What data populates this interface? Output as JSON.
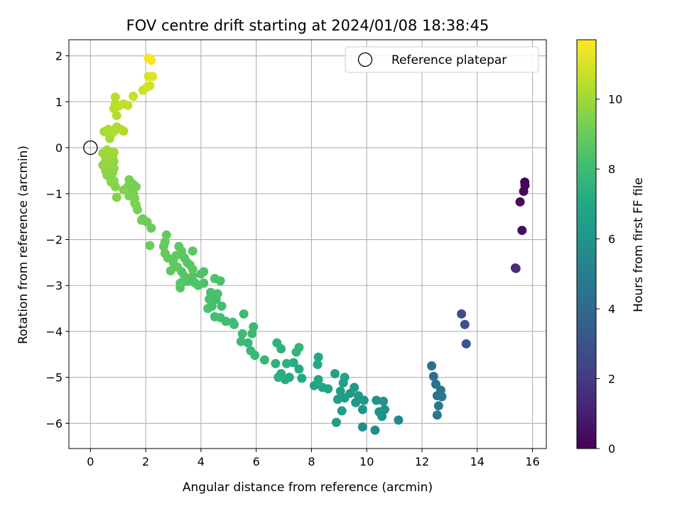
{
  "chart_data": {
    "type": "scatter",
    "title": "FOV centre drift starting at 2024/01/08 18:38:45",
    "xlabel": "Angular distance from reference (arcmin)",
    "ylabel": "Rotation from reference (arcmin)",
    "xlim": [
      -0.78,
      16.5
    ],
    "ylim": [
      -6.55,
      2.35
    ],
    "xticks": [
      0,
      2,
      4,
      6,
      8,
      10,
      12,
      14,
      16
    ],
    "yticks": [
      -6,
      -5,
      -4,
      -3,
      -2,
      -1,
      0,
      1,
      2
    ],
    "grid": true,
    "legend": {
      "position": "top-right",
      "entries": [
        "Reference platepar"
      ]
    },
    "reference_point": {
      "x": 0,
      "y": 0
    },
    "colorbar": {
      "label": "Hours from first FF file",
      "range": [
        0,
        11.7
      ],
      "ticks": [
        0,
        2,
        4,
        6,
        8,
        10
      ],
      "colormap": "viridis"
    },
    "points": [
      {
        "x": 15.72,
        "y": -0.75,
        "t": 0.1
      },
      {
        "x": 15.73,
        "y": -0.82,
        "t": 0.15
      },
      {
        "x": 15.68,
        "y": -0.95,
        "t": 0.2
      },
      {
        "x": 15.55,
        "y": -1.18,
        "t": 0.3
      },
      {
        "x": 15.62,
        "y": -1.8,
        "t": 0.4
      },
      {
        "x": 15.4,
        "y": -2.63,
        "t": 1.5
      },
      {
        "x": 15.38,
        "y": -2.62,
        "t": 1.5
      },
      {
        "x": 13.43,
        "y": -3.62,
        "t": 2.8
      },
      {
        "x": 13.55,
        "y": -3.85,
        "t": 3.0
      },
      {
        "x": 13.6,
        "y": -4.27,
        "t": 3.2
      },
      {
        "x": 12.35,
        "y": -4.75,
        "t": 4.2
      },
      {
        "x": 12.42,
        "y": -4.98,
        "t": 4.3
      },
      {
        "x": 12.5,
        "y": -5.15,
        "t": 4.4
      },
      {
        "x": 12.55,
        "y": -5.4,
        "t": 4.5
      },
      {
        "x": 12.6,
        "y": -5.62,
        "t": 4.6
      },
      {
        "x": 12.55,
        "y": -5.82,
        "t": 4.7
      },
      {
        "x": 12.68,
        "y": -5.28,
        "t": 4.6
      },
      {
        "x": 12.72,
        "y": -5.42,
        "t": 4.7
      },
      {
        "x": 11.15,
        "y": -5.93,
        "t": 5.4
      },
      {
        "x": 10.3,
        "y": -6.15,
        "t": 5.6
      },
      {
        "x": 9.85,
        "y": -6.08,
        "t": 5.7
      },
      {
        "x": 10.55,
        "y": -5.85,
        "t": 5.8
      },
      {
        "x": 10.65,
        "y": -5.7,
        "t": 5.8
      },
      {
        "x": 10.6,
        "y": -5.52,
        "t": 5.9
      },
      {
        "x": 10.35,
        "y": -5.5,
        "t": 6.0
      },
      {
        "x": 10.45,
        "y": -5.75,
        "t": 6.0
      },
      {
        "x": 9.9,
        "y": -5.5,
        "t": 6.1
      },
      {
        "x": 9.85,
        "y": -5.7,
        "t": 6.1
      },
      {
        "x": 9.6,
        "y": -5.55,
        "t": 6.2
      },
      {
        "x": 9.7,
        "y": -5.4,
        "t": 6.2
      },
      {
        "x": 9.4,
        "y": -5.35,
        "t": 6.3
      },
      {
        "x": 9.55,
        "y": -5.22,
        "t": 6.3
      },
      {
        "x": 9.2,
        "y": -5.45,
        "t": 6.4
      },
      {
        "x": 9.1,
        "y": -5.73,
        "t": 6.4
      },
      {
        "x": 8.9,
        "y": -5.98,
        "t": 6.5
      },
      {
        "x": 8.95,
        "y": -5.48,
        "t": 6.5
      },
      {
        "x": 9.05,
        "y": -5.3,
        "t": 6.6
      },
      {
        "x": 9.15,
        "y": -5.12,
        "t": 6.6
      },
      {
        "x": 9.2,
        "y": -5.0,
        "t": 6.7
      },
      {
        "x": 8.85,
        "y": -4.92,
        "t": 6.7
      },
      {
        "x": 8.6,
        "y": -5.25,
        "t": 6.8
      },
      {
        "x": 8.4,
        "y": -5.22,
        "t": 6.8
      },
      {
        "x": 8.25,
        "y": -5.05,
        "t": 6.9
      },
      {
        "x": 8.1,
        "y": -5.18,
        "t": 6.9
      },
      {
        "x": 8.25,
        "y": -4.56,
        "t": 7.0
      },
      {
        "x": 8.22,
        "y": -4.72,
        "t": 7.0
      },
      {
        "x": 7.65,
        "y": -5.02,
        "t": 7.1
      },
      {
        "x": 7.55,
        "y": -4.82,
        "t": 7.1
      },
      {
        "x": 7.35,
        "y": -4.68,
        "t": 7.2
      },
      {
        "x": 7.2,
        "y": -5.0,
        "t": 7.2
      },
      {
        "x": 7.05,
        "y": -5.05,
        "t": 7.3
      },
      {
        "x": 6.9,
        "y": -4.92,
        "t": 7.3
      },
      {
        "x": 6.8,
        "y": -5.0,
        "t": 7.4
      },
      {
        "x": 6.7,
        "y": -4.7,
        "t": 7.4
      },
      {
        "x": 6.9,
        "y": -4.38,
        "t": 7.5
      },
      {
        "x": 6.75,
        "y": -4.25,
        "t": 7.5
      },
      {
        "x": 7.1,
        "y": -4.7,
        "t": 7.5
      },
      {
        "x": 7.45,
        "y": -4.45,
        "t": 7.6
      },
      {
        "x": 7.55,
        "y": -4.35,
        "t": 7.6
      },
      {
        "x": 6.3,
        "y": -4.62,
        "t": 7.7
      },
      {
        "x": 5.95,
        "y": -4.52,
        "t": 7.8
      },
      {
        "x": 5.8,
        "y": -4.42,
        "t": 7.8
      },
      {
        "x": 5.7,
        "y": -4.25,
        "t": 7.8
      },
      {
        "x": 5.85,
        "y": -4.05,
        "t": 7.9
      },
      {
        "x": 5.9,
        "y": -3.9,
        "t": 7.9
      },
      {
        "x": 5.45,
        "y": -4.22,
        "t": 7.9
      },
      {
        "x": 5.5,
        "y": -4.05,
        "t": 8.0
      },
      {
        "x": 5.55,
        "y": -3.62,
        "t": 8.0
      },
      {
        "x": 5.2,
        "y": -3.85,
        "t": 8.0
      },
      {
        "x": 5.15,
        "y": -3.8,
        "t": 8.1
      },
      {
        "x": 4.9,
        "y": -3.78,
        "t": 8.1
      },
      {
        "x": 4.7,
        "y": -3.7,
        "t": 8.1
      },
      {
        "x": 4.5,
        "y": -3.68,
        "t": 8.2
      },
      {
        "x": 4.75,
        "y": -3.45,
        "t": 8.2
      },
      {
        "x": 4.55,
        "y": -3.3,
        "t": 8.2
      },
      {
        "x": 4.4,
        "y": -3.45,
        "t": 8.2
      },
      {
        "x": 4.3,
        "y": -3.3,
        "t": 8.3
      },
      {
        "x": 4.35,
        "y": -3.15,
        "t": 8.3
      },
      {
        "x": 4.25,
        "y": -3.5,
        "t": 8.3
      },
      {
        "x": 4.6,
        "y": -3.18,
        "t": 8.3
      },
      {
        "x": 4.7,
        "y": -2.9,
        "t": 8.3
      },
      {
        "x": 4.5,
        "y": -2.85,
        "t": 8.4
      },
      {
        "x": 4.1,
        "y": -2.7,
        "t": 8.4
      },
      {
        "x": 4.0,
        "y": -2.75,
        "t": 8.4
      },
      {
        "x": 3.9,
        "y": -3.0,
        "t": 8.5
      },
      {
        "x": 3.8,
        "y": -2.95,
        "t": 8.5
      },
      {
        "x": 3.7,
        "y": -2.8,
        "t": 8.5
      },
      {
        "x": 3.55,
        "y": -2.9,
        "t": 8.5
      },
      {
        "x": 3.45,
        "y": -2.9,
        "t": 8.5
      },
      {
        "x": 3.3,
        "y": -2.7,
        "t": 8.6
      },
      {
        "x": 3.25,
        "y": -2.95,
        "t": 8.6
      },
      {
        "x": 3.25,
        "y": -3.05,
        "t": 8.6
      },
      {
        "x": 3.4,
        "y": -2.8,
        "t": 8.6
      },
      {
        "x": 3.6,
        "y": -2.55,
        "t": 8.6
      },
      {
        "x": 3.7,
        "y": -2.65,
        "t": 8.7
      },
      {
        "x": 3.5,
        "y": -2.5,
        "t": 8.7
      },
      {
        "x": 3.4,
        "y": -2.4,
        "t": 8.7
      },
      {
        "x": 3.3,
        "y": -2.25,
        "t": 8.7
      },
      {
        "x": 3.2,
        "y": -2.15,
        "t": 8.8
      },
      {
        "x": 3.1,
        "y": -2.35,
        "t": 8.8
      },
      {
        "x": 3.0,
        "y": -2.5,
        "t": 8.8
      },
      {
        "x": 2.9,
        "y": -2.68,
        "t": 8.8
      },
      {
        "x": 2.8,
        "y": -2.4,
        "t": 8.8
      },
      {
        "x": 2.7,
        "y": -2.3,
        "t": 8.9
      },
      {
        "x": 2.65,
        "y": -2.15,
        "t": 8.9
      },
      {
        "x": 2.7,
        "y": -2.05,
        "t": 8.9
      },
      {
        "x": 2.75,
        "y": -1.9,
        "t": 8.9
      },
      {
        "x": 3.15,
        "y": -2.6,
        "t": 8.8
      },
      {
        "x": 3.7,
        "y": -2.25,
        "t": 8.7
      },
      {
        "x": 4.1,
        "y": -2.95,
        "t": 8.4
      },
      {
        "x": 2.15,
        "y": -2.13,
        "t": 9.0
      },
      {
        "x": 2.2,
        "y": -1.75,
        "t": 9.0
      },
      {
        "x": 2.05,
        "y": -1.62,
        "t": 9.1
      },
      {
        "x": 1.9,
        "y": -1.55,
        "t": 9.1
      },
      {
        "x": 1.85,
        "y": -1.58,
        "t": 9.1
      },
      {
        "x": 1.7,
        "y": -1.35,
        "t": 9.2
      },
      {
        "x": 1.6,
        "y": -1.2,
        "t": 9.2
      },
      {
        "x": 1.55,
        "y": -1.0,
        "t": 9.2
      },
      {
        "x": 1.5,
        "y": -0.9,
        "t": 9.3
      },
      {
        "x": 1.45,
        "y": -0.75,
        "t": 9.3
      },
      {
        "x": 1.4,
        "y": -0.7,
        "t": 9.3
      },
      {
        "x": 1.35,
        "y": -0.85,
        "t": 9.3
      },
      {
        "x": 1.55,
        "y": -0.8,
        "t": 9.3
      },
      {
        "x": 1.65,
        "y": -0.85,
        "t": 9.3
      },
      {
        "x": 1.4,
        "y": -1.05,
        "t": 9.4
      },
      {
        "x": 1.6,
        "y": -1.1,
        "t": 9.4
      },
      {
        "x": 1.65,
        "y": -1.25,
        "t": 9.4
      },
      {
        "x": 1.2,
        "y": -0.92,
        "t": 9.5
      },
      {
        "x": 0.95,
        "y": -1.08,
        "t": 9.5
      },
      {
        "x": 0.9,
        "y": -0.85,
        "t": 9.5
      },
      {
        "x": 0.85,
        "y": -0.72,
        "t": 9.6
      },
      {
        "x": 0.75,
        "y": -0.75,
        "t": 9.6
      },
      {
        "x": 0.7,
        "y": -0.65,
        "t": 9.6
      },
      {
        "x": 0.6,
        "y": -0.6,
        "t": 9.6
      },
      {
        "x": 0.55,
        "y": -0.5,
        "t": 9.7
      },
      {
        "x": 0.8,
        "y": -0.55,
        "t": 9.7
      },
      {
        "x": 0.85,
        "y": -0.45,
        "t": 9.7
      },
      {
        "x": 0.75,
        "y": -0.35,
        "t": 9.7
      },
      {
        "x": 0.65,
        "y": -0.4,
        "t": 9.8
      },
      {
        "x": 0.55,
        "y": -0.3,
        "t": 9.8
      },
      {
        "x": 0.45,
        "y": -0.38,
        "t": 9.8
      },
      {
        "x": 0.85,
        "y": -0.3,
        "t": 9.8
      },
      {
        "x": 0.8,
        "y": -0.2,
        "t": 9.9
      },
      {
        "x": 0.7,
        "y": -0.15,
        "t": 9.9
      },
      {
        "x": 0.55,
        "y": -0.2,
        "t": 9.9
      },
      {
        "x": 0.45,
        "y": -0.12,
        "t": 9.9
      },
      {
        "x": 0.6,
        "y": -0.05,
        "t": 10.0
      },
      {
        "x": 0.85,
        "y": -0.1,
        "t": 10.0
      },
      {
        "x": 0.7,
        "y": 0.2,
        "t": 10.1
      },
      {
        "x": 0.75,
        "y": 0.3,
        "t": 10.1
      },
      {
        "x": 0.65,
        "y": 0.4,
        "t": 10.2
      },
      {
        "x": 0.5,
        "y": 0.35,
        "t": 10.2
      },
      {
        "x": 0.95,
        "y": 0.45,
        "t": 10.2
      },
      {
        "x": 0.85,
        "y": 0.35,
        "t": 10.3
      },
      {
        "x": 1.2,
        "y": 0.36,
        "t": 10.3
      },
      {
        "x": 1.1,
        "y": 0.4,
        "t": 10.3
      },
      {
        "x": 0.95,
        "y": 0.7,
        "t": 10.4
      },
      {
        "x": 0.85,
        "y": 0.85,
        "t": 10.4
      },
      {
        "x": 0.9,
        "y": 0.95,
        "t": 10.5
      },
      {
        "x": 1.0,
        "y": 0.9,
        "t": 10.5
      },
      {
        "x": 0.9,
        "y": 1.1,
        "t": 10.5
      },
      {
        "x": 1.2,
        "y": 0.95,
        "t": 10.6
      },
      {
        "x": 1.35,
        "y": 0.92,
        "t": 10.6
      },
      {
        "x": 1.55,
        "y": 1.12,
        "t": 10.7
      },
      {
        "x": 1.9,
        "y": 1.25,
        "t": 10.8
      },
      {
        "x": 2.05,
        "y": 1.32,
        "t": 10.9
      },
      {
        "x": 2.15,
        "y": 1.35,
        "t": 10.9
      },
      {
        "x": 2.1,
        "y": 1.55,
        "t": 11.0
      },
      {
        "x": 2.25,
        "y": 1.55,
        "t": 11.1
      },
      {
        "x": 2.1,
        "y": 1.95,
        "t": 11.5
      },
      {
        "x": 2.2,
        "y": 1.9,
        "t": 11.6
      }
    ]
  }
}
